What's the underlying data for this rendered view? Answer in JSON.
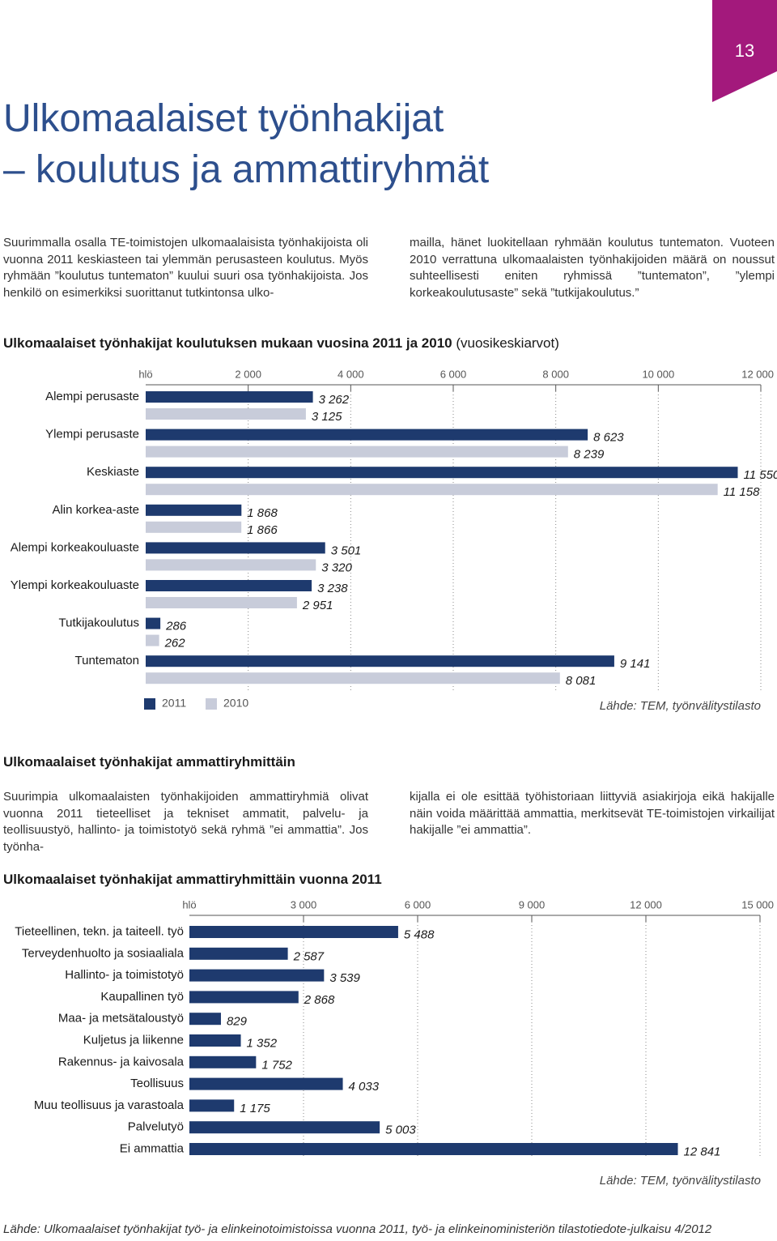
{
  "page_number": "13",
  "title": [
    "Ulkomaalaiset työnhakijat",
    "– koulutus ja ammattiryhmät"
  ],
  "intro": {
    "left": "Suurimmalla osalla TE-toimistojen ulkomaalaisista työnhakijoista oli vuonna 2011 keskiasteen tai ylemmän perusasteen koulutus. Myös ryhmään ”koulutus tuntematon” kuului suuri osa työnhakijoista. Jos henkilö on esimerkiksi suorittanut tutkintonsa ulko-",
    "right": "mailla, hänet luokitellaan ryhmään koulutus tuntematon. Vuoteen 2010 verrattuna ulkomaalaisten työnhakijoiden määrä on noussut suhteellisesti eniten ryhmissä ”tuntematon”, ”ylempi korkeakoulutusaste” sekä ”tutkijakoulutus.”"
  },
  "section_heading": "Ulkomaalaiset työnhakijat ammattiryhmittäin",
  "section_text": {
    "left": "Suurimpia ulkomaalaisten työnhakijoiden ammattiryhmiä olivat vuonna 2011 tieteelliset ja tekniset ammatit, palvelu- ja teollisuustyö, hallinto- ja toimistotyö sekä ryhmä ”ei ammattia”. Jos työnha-",
    "right": "kijalla ei ole esittää työhistoriaan liittyviä asiakirjoja eikä hakijalle näin voida määrittää ammattia, merkitsevät TE-toimistojen virkailijat hakijalle ”ei ammattia”."
  },
  "chart_data": [
    {
      "type": "bar",
      "orientation": "horizontal",
      "title": "Ulkomaalaiset työnhakijat koulutuksen mukaan vuosina 2011 ja 2010",
      "subtitle": "(vuosikeskiarvot)",
      "xlabel": "hlö",
      "xlim": [
        0,
        12000
      ],
      "xticks": [
        {
          "value": 2000,
          "label": "2 000"
        },
        {
          "value": 4000,
          "label": "4 000"
        },
        {
          "value": 6000,
          "label": "6 000"
        },
        {
          "value": 8000,
          "label": "8 000"
        },
        {
          "value": 10000,
          "label": "10 000"
        },
        {
          "value": 12000,
          "label": "12 000"
        }
      ],
      "grid": true,
      "legend": "bottom-left",
      "categories": [
        "Alempi perusaste",
        "Ylempi perusaste",
        "Keskiaste",
        "Alin korkea-aste",
        "Alempi korkeakouluaste",
        "Ylempi korkeakouluaste",
        "Tutkijakoulutus",
        "Tuntematon"
      ],
      "series": [
        {
          "name": "2011",
          "color": "#1e3a6e",
          "values": [
            3262,
            8623,
            11550,
            1868,
            3501,
            3238,
            286,
            9141
          ],
          "value_labels": [
            "3 262",
            "8 623",
            "11 550",
            "1 868",
            "3 501",
            "3 238",
            "286",
            "9 141"
          ]
        },
        {
          "name": "2010",
          "color": "#c8ccda",
          "values": [
            3125,
            8239,
            11158,
            1866,
            3320,
            2951,
            262,
            8081
          ],
          "value_labels": [
            "3 125",
            "8 239",
            "11 158",
            "1 866",
            "3 320",
            "2 951",
            "262",
            "8 081"
          ]
        }
      ],
      "source": "Lähde: TEM, työnvälitystilasto"
    },
    {
      "type": "bar",
      "orientation": "horizontal",
      "title": "Ulkomaalaiset työnhakijat ammattiryhmittäin vuonna 2011",
      "xlabel": "hlö",
      "xlim": [
        0,
        15000
      ],
      "xticks": [
        {
          "value": 3000,
          "label": "3 000"
        },
        {
          "value": 6000,
          "label": "6 000"
        },
        {
          "value": 9000,
          "label": "9 000"
        },
        {
          "value": 12000,
          "label": "12 000"
        },
        {
          "value": 15000,
          "label": "15 000"
        }
      ],
      "grid": true,
      "categories": [
        "Tieteellinen, tekn. ja taiteell. työ",
        "Terveydenhuolto ja sosiaaliala",
        "Hallinto- ja toimistotyö",
        "Kaupallinen työ",
        "Maa- ja metsätaloustyö",
        "Kuljetus ja liikenne",
        "Rakennus- ja kaivosala",
        "Teollisuus",
        "Muu teollisuus ja varastoala",
        "Palvelutyö",
        "Ei ammattia"
      ],
      "color": "#1e3a6e",
      "values": [
        5488,
        2587,
        3539,
        2868,
        829,
        1352,
        1752,
        4033,
        1175,
        5003,
        12841
      ],
      "value_labels": [
        "5 488",
        "2 587",
        "3 539",
        "2 868",
        "829",
        "1 352",
        "1 752",
        "4 033",
        "1 175",
        "5 003",
        "12 841"
      ],
      "source": "Lähde: TEM, työnvälitystilasto"
    }
  ],
  "footer_source": "Lähde: Ulkomaalaiset työnhakijat työ- ja elinkeinotoimistoissa vuonna 2011, työ- ja elinkeinoministeriön tilastotiedote-julkaisu 4/2012"
}
